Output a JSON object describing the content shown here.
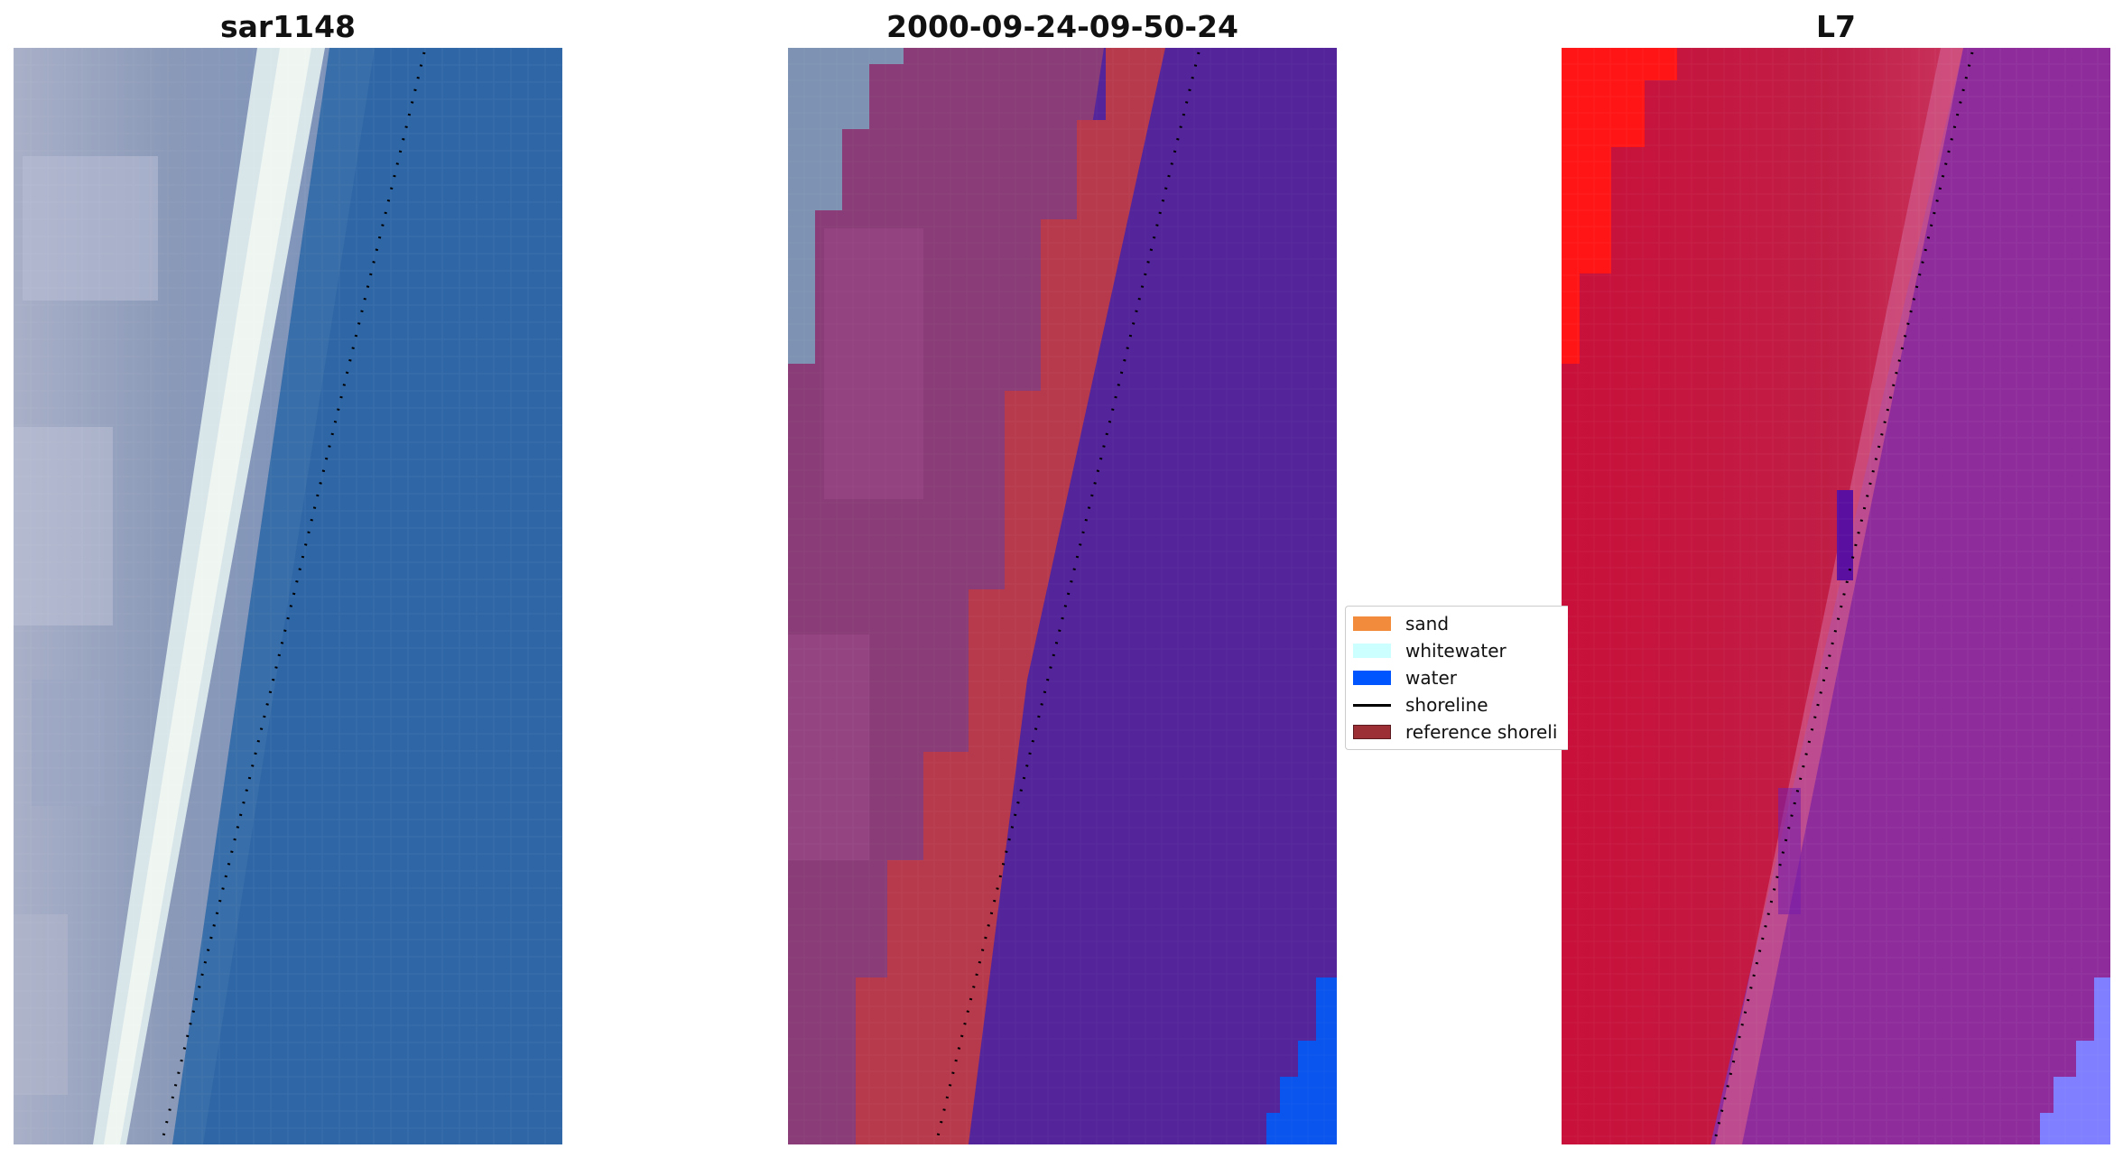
{
  "panels": [
    {
      "title": "sar1148"
    },
    {
      "title": "2000-09-24-09-50-24"
    },
    {
      "title": "L7"
    }
  ],
  "legend": {
    "items": [
      {
        "label": "sand",
        "color": "#f28c3c"
      },
      {
        "label": "whitewater",
        "color": "#ccffff"
      },
      {
        "label": "water",
        "color": "#0055ff"
      },
      {
        "label": "shoreline",
        "color": "#000000"
      },
      {
        "label": "reference shoreli",
        "color": "#9b2f35"
      }
    ]
  },
  "colors": {
    "rgb_water": "#2f67a6",
    "rgb_land": "#8795b3",
    "rgb_whitewater": "#e6eef0",
    "class_land": "#8a3c78",
    "class_reference": "#b73a4c",
    "class_water": "#53249a",
    "class_water_blue": "#0a55ee",
    "l7_land": "#c01e46",
    "l7_sea": "#8e2c9c",
    "l7_bright_red": "#ff1515",
    "l7_water_light": "#7f7fff"
  },
  "icons": {
    "shoreline_marker": "dotted-line-icon"
  }
}
